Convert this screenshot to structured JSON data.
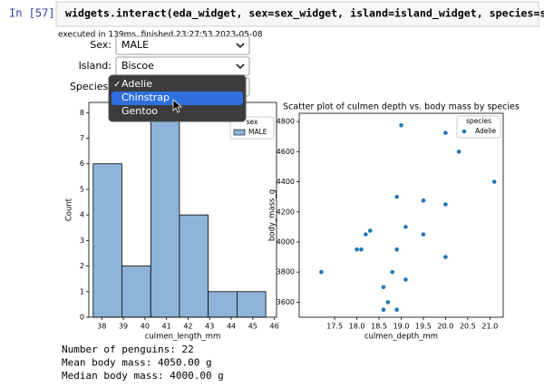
{
  "cell": {
    "prompt": "In [57]:",
    "code": "widgets.interact(eda_widget, sex=sex_widget, island=island_widget, species=species_widget)",
    "status": "executed in 139ms, finished 23:27:53 2023-05-08"
  },
  "widgets": [
    {
      "label": "Sex:",
      "value": "MALE"
    },
    {
      "label": "Island:",
      "value": "Biscoe"
    },
    {
      "label": "Species:"
    }
  ],
  "dropdown": {
    "check": "✓",
    "options": [
      "Adelie",
      "Chinstrap",
      "Gentoo"
    ]
  },
  "chart_data": [
    {
      "type": "histogram",
      "xlabel": "culmen_length_mm",
      "ylabel": "Count",
      "bins": [
        37.6,
        38.93,
        40.27,
        41.6,
        42.93,
        44.27,
        45.6
      ],
      "series": [
        {
          "name": "MALE",
          "color": "#8db4d8",
          "values": [
            6,
            2,
            8,
            4,
            1,
            1
          ]
        }
      ],
      "legend_title": "sex",
      "legend": "upper right",
      "xlim": [
        37.4,
        46.1
      ],
      "xticks": [
        38,
        39,
        40,
        41,
        42,
        43,
        44,
        45,
        46
      ],
      "ylim": [
        0,
        8.4
      ],
      "yticks": [
        0,
        1,
        2,
        3,
        4,
        5,
        6,
        7,
        8
      ]
    },
    {
      "type": "scatter",
      "title": "Scatter plot of culmen depth vs. body mass by species",
      "xlabel": "culmen_depth_mm",
      "ylabel": "body_mass_g",
      "x": [
        17.2,
        18.0,
        18.1,
        18.2,
        18.3,
        19.0,
        18.9,
        19.1,
        18.9,
        18.8,
        19.1,
        18.6,
        18.7,
        18.6,
        18.9,
        19.5,
        19.5,
        20.0,
        20.3,
        20.0,
        20.0,
        21.1
      ],
      "series": [
        {
          "name": "Adelie",
          "color": "#1f77b4",
          "values": [
            3800,
            3950,
            3950,
            4050,
            4075,
            4775,
            4300,
            4100,
            3950,
            3800,
            3750,
            3700,
            3600,
            3550,
            3550,
            4275,
            4050,
            4725,
            4600,
            4250,
            3900,
            4400
          ]
        }
      ],
      "legend_title": "species",
      "legend": "upper right",
      "xlim": [
        16.7,
        21.3
      ],
      "xticks": [
        17.5,
        {
          "value": 18,
          "label": "18.0"
        },
        18.5,
        {
          "value": 19,
          "label": "19.0"
        },
        19.5,
        {
          "value": 20,
          "label": "20.0"
        },
        20.5,
        {
          "value": 21,
          "label": "21.0"
        }
      ],
      "ylim": [
        3500,
        4855
      ],
      "yticks": [
        3600,
        3800,
        4000,
        4200,
        4400,
        4600,
        4800
      ]
    }
  ],
  "output": [
    "Number of penguins: 22",
    "Mean body mass: 4050.00 g",
    "Median body mass: 4000.00 g"
  ]
}
